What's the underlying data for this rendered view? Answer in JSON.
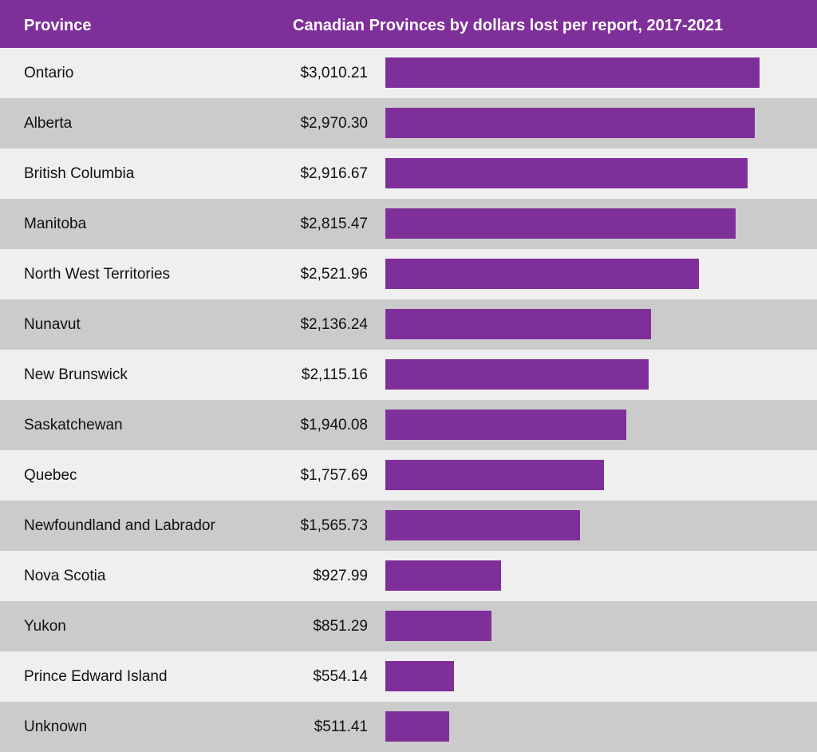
{
  "header": {
    "column_label": "Province",
    "title": "Canadian Provinces by dollars lost per report, 2017-2021"
  },
  "colors": {
    "accent": "#7f2f9a",
    "row_light": "#efefef",
    "row_dark": "#cbcbcb"
  },
  "chart_data": {
    "type": "bar",
    "orientation": "horizontal",
    "title": "Canadian Provinces by dollars lost per report, 2017-2021",
    "category_header": "Province",
    "categories": [
      "Ontario",
      "Alberta",
      "British Columbia",
      "Manitoba",
      "North West Territories",
      "Nunavut",
      "New Brunswick",
      "Saskatchewan",
      "Quebec",
      "Newfoundland and Labrador",
      "Nova Scotia",
      "Yukon",
      "Prince Edward Island",
      "Unknown"
    ],
    "values": [
      3010.21,
      2970.3,
      2916.67,
      2815.47,
      2521.96,
      2136.24,
      2115.16,
      1940.08,
      1757.69,
      1565.73,
      927.99,
      851.29,
      554.14,
      511.41
    ],
    "value_labels": [
      "$3,010.21",
      "$2,970.30",
      "$2,916.67",
      "$2,815.47",
      "$2,521.96",
      "$2,136.24",
      "$2,115.16",
      "$1,940.08",
      "$1,757.69",
      "$1,565.73",
      "$927.99",
      "$851.29",
      "$554.14",
      "$511.41"
    ],
    "xlim": [
      0,
      3010.21
    ],
    "grid": false,
    "legend": "none"
  }
}
